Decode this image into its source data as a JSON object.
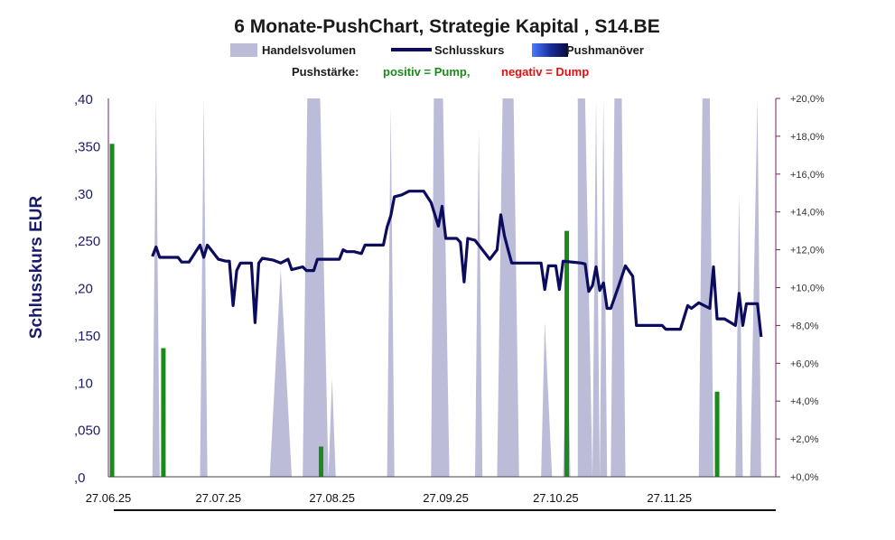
{
  "chart_data": {
    "type": "line",
    "title": "6 Monate-PushChart, Strategie Kapital , S14.BE",
    "legend": {
      "placement": "top-center",
      "items": [
        {
          "label": "Handelsvolumen",
          "color": "#bcbcd8"
        },
        {
          "label": "Schlusskurs",
          "color": "#0c0c5e"
        },
        {
          "label": "Pushmanöver",
          "color": "#2a4fd0"
        }
      ]
    },
    "subtitle": {
      "prefix": "Pushstärke:",
      "positive": "positiv = Pump,",
      "negative": "negativ = Dump",
      "positive_color": "#1a8a1a",
      "negative_color": "#e01010"
    },
    "ylabel": "Schlusskurs EUR",
    "y_left": {
      "range": [
        0,
        0.4
      ],
      "ticks": [
        {
          "value": 0,
          "label": ",0"
        },
        {
          "value": 0.05,
          "label": ",050"
        },
        {
          "value": 0.1,
          "label": ",10"
        },
        {
          "value": 0.15,
          "label": ",150"
        },
        {
          "value": 0.2,
          "label": ",20"
        },
        {
          "value": 0.25,
          "label": ",250"
        },
        {
          "value": 0.3,
          "label": ",30"
        },
        {
          "value": 0.35,
          "label": ",350"
        },
        {
          "value": 0.4,
          "label": ",40"
        }
      ]
    },
    "y_right": {
      "range": [
        0,
        20
      ],
      "ticks": [
        {
          "value": 0,
          "label": "+0,0%"
        },
        {
          "value": 2,
          "label": "+2,0%"
        },
        {
          "value": 4,
          "label": "+4,0%"
        },
        {
          "value": 6,
          "label": "+6,0%"
        },
        {
          "value": 8,
          "label": "+8,0%"
        },
        {
          "value": 10,
          "label": "+10,0%"
        },
        {
          "value": 12,
          "label": "+12,0%"
        },
        {
          "value": 14,
          "label": "+14,0%"
        },
        {
          "value": 16,
          "label": "+16,0%"
        },
        {
          "value": 18,
          "label": "+18,0%"
        },
        {
          "value": 20,
          "label": "+20,0%"
        }
      ]
    },
    "x_range": [
      "2025-06-27",
      "2025-12-26"
    ],
    "x_ticks": [
      {
        "date": "2025-06-27",
        "label": "27.06.25"
      },
      {
        "date": "2025-07-27",
        "label": "27.07.25"
      },
      {
        "date": "2025-08-27",
        "label": "27.08.25"
      },
      {
        "date": "2025-09-27",
        "label": "27.09.25"
      },
      {
        "date": "2025-10-27",
        "label": "27.10.25"
      },
      {
        "date": "2025-11-27",
        "label": "27.11.25"
      }
    ],
    "grid": false,
    "series": [
      {
        "name": "Schlusskurs",
        "type": "line",
        "color": "#0c0c5e",
        "points": [
          [
            "2025-07-09",
            0.233
          ],
          [
            "2025-07-10",
            0.243
          ],
          [
            "2025-07-11",
            0.232
          ],
          [
            "2025-07-14",
            0.232
          ],
          [
            "2025-07-16",
            0.232
          ],
          [
            "2025-07-17",
            0.227
          ],
          [
            "2025-07-19",
            0.227
          ],
          [
            "2025-07-22",
            0.245
          ],
          [
            "2025-07-23",
            0.232
          ],
          [
            "2025-07-24",
            0.245
          ],
          [
            "2025-07-25",
            0.24
          ],
          [
            "2025-07-27",
            0.23
          ],
          [
            "2025-07-29",
            0.228
          ],
          [
            "2025-07-30",
            0.228
          ],
          [
            "2025-07-31",
            0.181
          ],
          [
            "2025-08-01",
            0.218
          ],
          [
            "2025-08-02",
            0.226
          ],
          [
            "2025-08-05",
            0.226
          ],
          [
            "2025-08-06",
            0.163
          ],
          [
            "2025-08-07",
            0.226
          ],
          [
            "2025-08-08",
            0.231
          ],
          [
            "2025-08-11",
            0.229
          ],
          [
            "2025-08-13",
            0.226
          ],
          [
            "2025-08-15",
            0.23
          ],
          [
            "2025-08-16",
            0.219
          ],
          [
            "2025-08-19",
            0.222
          ],
          [
            "2025-08-20",
            0.218
          ],
          [
            "2025-08-22",
            0.218
          ],
          [
            "2025-08-23",
            0.23
          ],
          [
            "2025-08-25",
            0.23
          ],
          [
            "2025-08-29",
            0.23
          ],
          [
            "2025-08-30",
            0.24
          ],
          [
            "2025-08-31",
            0.238
          ],
          [
            "2025-09-02",
            0.238
          ],
          [
            "2025-09-04",
            0.236
          ],
          [
            "2025-09-05",
            0.245
          ],
          [
            "2025-09-08",
            0.245
          ],
          [
            "2025-09-10",
            0.245
          ],
          [
            "2025-09-11",
            0.264
          ],
          [
            "2025-09-12",
            0.276
          ],
          [
            "2025-09-13",
            0.296
          ],
          [
            "2025-09-15",
            0.298
          ],
          [
            "2025-09-17",
            0.302
          ],
          [
            "2025-09-21",
            0.302
          ],
          [
            "2025-09-23",
            0.29
          ],
          [
            "2025-09-25",
            0.265
          ],
          [
            "2025-09-26",
            0.286
          ],
          [
            "2025-09-27",
            0.252
          ],
          [
            "2025-09-30",
            0.252
          ],
          [
            "2025-10-01",
            0.248
          ],
          [
            "2025-10-02",
            0.206
          ],
          [
            "2025-10-03",
            0.252
          ],
          [
            "2025-10-05",
            0.25
          ],
          [
            "2025-10-07",
            0.24
          ],
          [
            "2025-10-09",
            0.23
          ],
          [
            "2025-10-11",
            0.24
          ],
          [
            "2025-10-12",
            0.277
          ],
          [
            "2025-10-13",
            0.255
          ],
          [
            "2025-10-14",
            0.24
          ],
          [
            "2025-10-15",
            0.226
          ],
          [
            "2025-10-17",
            0.226
          ],
          [
            "2025-10-21",
            0.226
          ],
          [
            "2025-10-23",
            0.226
          ],
          [
            "2025-10-24",
            0.198
          ],
          [
            "2025-10-25",
            0.223
          ],
          [
            "2025-10-27",
            0.223
          ],
          [
            "2025-10-28",
            0.198
          ],
          [
            "2025-10-29",
            0.228
          ],
          [
            "2025-11-03",
            0.226
          ],
          [
            "2025-11-04",
            0.225
          ],
          [
            "2025-11-05",
            0.196
          ],
          [
            "2025-11-06",
            0.202
          ],
          [
            "2025-11-07",
            0.222
          ],
          [
            "2025-11-08",
            0.197
          ],
          [
            "2025-11-09",
            0.205
          ],
          [
            "2025-11-10",
            0.178
          ],
          [
            "2025-11-11",
            0.178
          ],
          [
            "2025-11-13",
            0.2
          ],
          [
            "2025-11-15",
            0.223
          ],
          [
            "2025-11-17",
            0.212
          ],
          [
            "2025-11-18",
            0.16
          ],
          [
            "2025-11-21",
            0.16
          ],
          [
            "2025-11-25",
            0.16
          ],
          [
            "2025-11-26",
            0.156
          ],
          [
            "2025-11-30",
            0.156
          ],
          [
            "2025-12-02",
            0.181
          ],
          [
            "2025-12-03",
            0.178
          ],
          [
            "2025-12-05",
            0.184
          ],
          [
            "2025-12-08",
            0.178
          ],
          [
            "2025-12-09",
            0.222
          ],
          [
            "2025-12-10",
            0.167
          ],
          [
            "2025-12-12",
            0.167
          ],
          [
            "2025-12-15",
            0.16
          ],
          [
            "2025-12-16",
            0.194
          ],
          [
            "2025-12-17",
            0.16
          ],
          [
            "2025-12-18",
            0.183
          ],
          [
            "2025-12-21",
            0.183
          ],
          [
            "2025-12-22",
            0.148
          ]
        ]
      },
      {
        "name": "Handelsvolumen",
        "type": "area",
        "color": "#bcbcd8",
        "spikes": [
          {
            "start": "2025-07-09",
            "peak": "2025-07-10",
            "end": "2025-07-11",
            "level": 1.0
          },
          {
            "start": "2025-07-22",
            "peak": "2025-07-23",
            "end": "2025-07-24",
            "level": 1.0
          },
          {
            "start": "2025-08-10",
            "peak": "2025-08-13",
            "end": "2025-08-16",
            "level": 0.55
          },
          {
            "start": "2025-08-19",
            "peak": "2025-08-22",
            "end": "2025-08-26",
            "level": 1.0,
            "flat": true
          },
          {
            "start": "2025-08-26",
            "peak": "2025-08-27",
            "end": "2025-08-28",
            "level": 0.26
          },
          {
            "start": "2025-09-11",
            "peak": "2025-09-12",
            "end": "2025-09-13",
            "level": 0.98
          },
          {
            "start": "2025-09-23",
            "peak": "2025-09-25",
            "end": "2025-09-28",
            "level": 1.0,
            "flat": true
          },
          {
            "start": "2025-10-05",
            "peak": "2025-10-06",
            "end": "2025-10-07",
            "level": 0.92
          },
          {
            "start": "2025-10-11",
            "peak": "2025-10-14",
            "end": "2025-10-17",
            "level": 1.0,
            "flat": true
          },
          {
            "start": "2025-10-23",
            "peak": "2025-10-24",
            "end": "2025-10-26",
            "level": 0.41
          },
          {
            "start": "2025-10-29",
            "peak": "2025-10-30",
            "end": "2025-10-31",
            "level": 0.41
          },
          {
            "start": "2025-11-02",
            "peak": "2025-11-03",
            "end": "2025-11-06",
            "level": 1.0,
            "flat": true
          },
          {
            "start": "2025-11-06",
            "peak": "2025-11-07",
            "end": "2025-11-08",
            "level": 1.0
          },
          {
            "start": "2025-11-08",
            "peak": "2025-11-09",
            "end": "2025-11-10",
            "level": 1.0
          },
          {
            "start": "2025-11-11",
            "peak": "2025-11-13",
            "end": "2025-11-15",
            "level": 1.0,
            "flat": true
          },
          {
            "start": "2025-12-05",
            "peak": "2025-12-07",
            "end": "2025-12-09",
            "level": 1.0,
            "flat": true
          },
          {
            "start": "2025-12-15",
            "peak": "2025-12-16",
            "end": "2025-12-17",
            "level": 0.75
          },
          {
            "start": "2025-12-19",
            "peak": "2025-12-21",
            "end": "2025-12-22",
            "level": 1.0
          }
        ]
      },
      {
        "name": "Pushstärke",
        "type": "bar",
        "color": "#1a8a1a",
        "axis": "right",
        "points": [
          [
            "2025-06-28",
            17.6
          ],
          [
            "2025-07-12",
            6.8
          ],
          [
            "2025-08-24",
            1.6
          ],
          [
            "2025-10-30",
            13.0
          ],
          [
            "2025-12-10",
            4.5
          ]
        ]
      }
    ]
  }
}
